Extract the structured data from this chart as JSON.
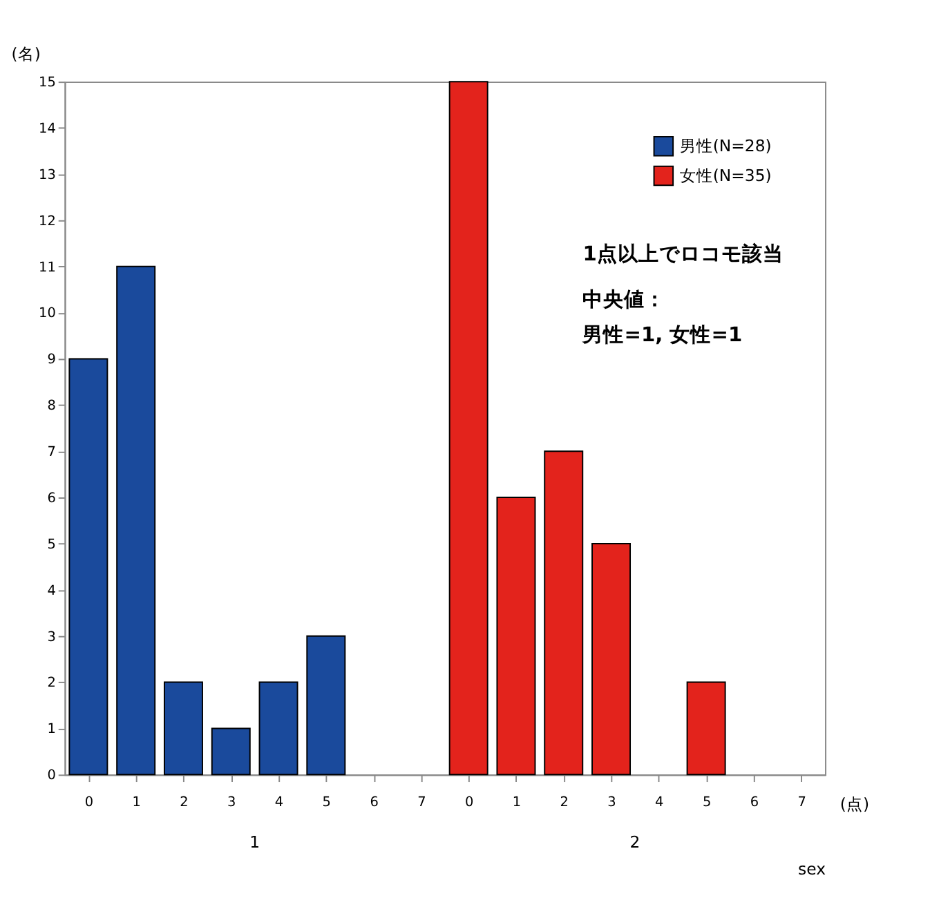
{
  "chart_data": {
    "type": "bar",
    "ylabel": "(名)",
    "xlabel": "sex",
    "categories": [
      "0",
      "1",
      "2",
      "3",
      "4",
      "5",
      "6",
      "7",
      "0",
      "1",
      "2",
      "3",
      "4",
      "5",
      "6",
      "7"
    ],
    "series": [
      {
        "name": "男性(N=28)",
        "color": "#1a4a9c",
        "values": [
          9,
          11,
          2,
          1,
          2,
          3,
          0,
          0,
          null,
          null,
          null,
          null,
          null,
          null,
          null,
          null
        ]
      },
      {
        "name": "女性(N=35)",
        "color": "#e3231c",
        "values": [
          null,
          null,
          null,
          null,
          null,
          null,
          null,
          null,
          15,
          6,
          7,
          5,
          0,
          2,
          0,
          0
        ]
      }
    ],
    "ylim": [
      0,
      15
    ],
    "yticks": [
      0,
      1,
      2,
      3,
      4,
      5,
      6,
      7,
      8,
      9,
      10,
      11,
      12,
      13,
      14,
      15
    ],
    "grid": false,
    "legend": "top right",
    "annotations": [
      "(点)",
      "1",
      "2",
      "1点以上でロコモ該当",
      "中央値：",
      "男性=1, 女性=1"
    ]
  }
}
